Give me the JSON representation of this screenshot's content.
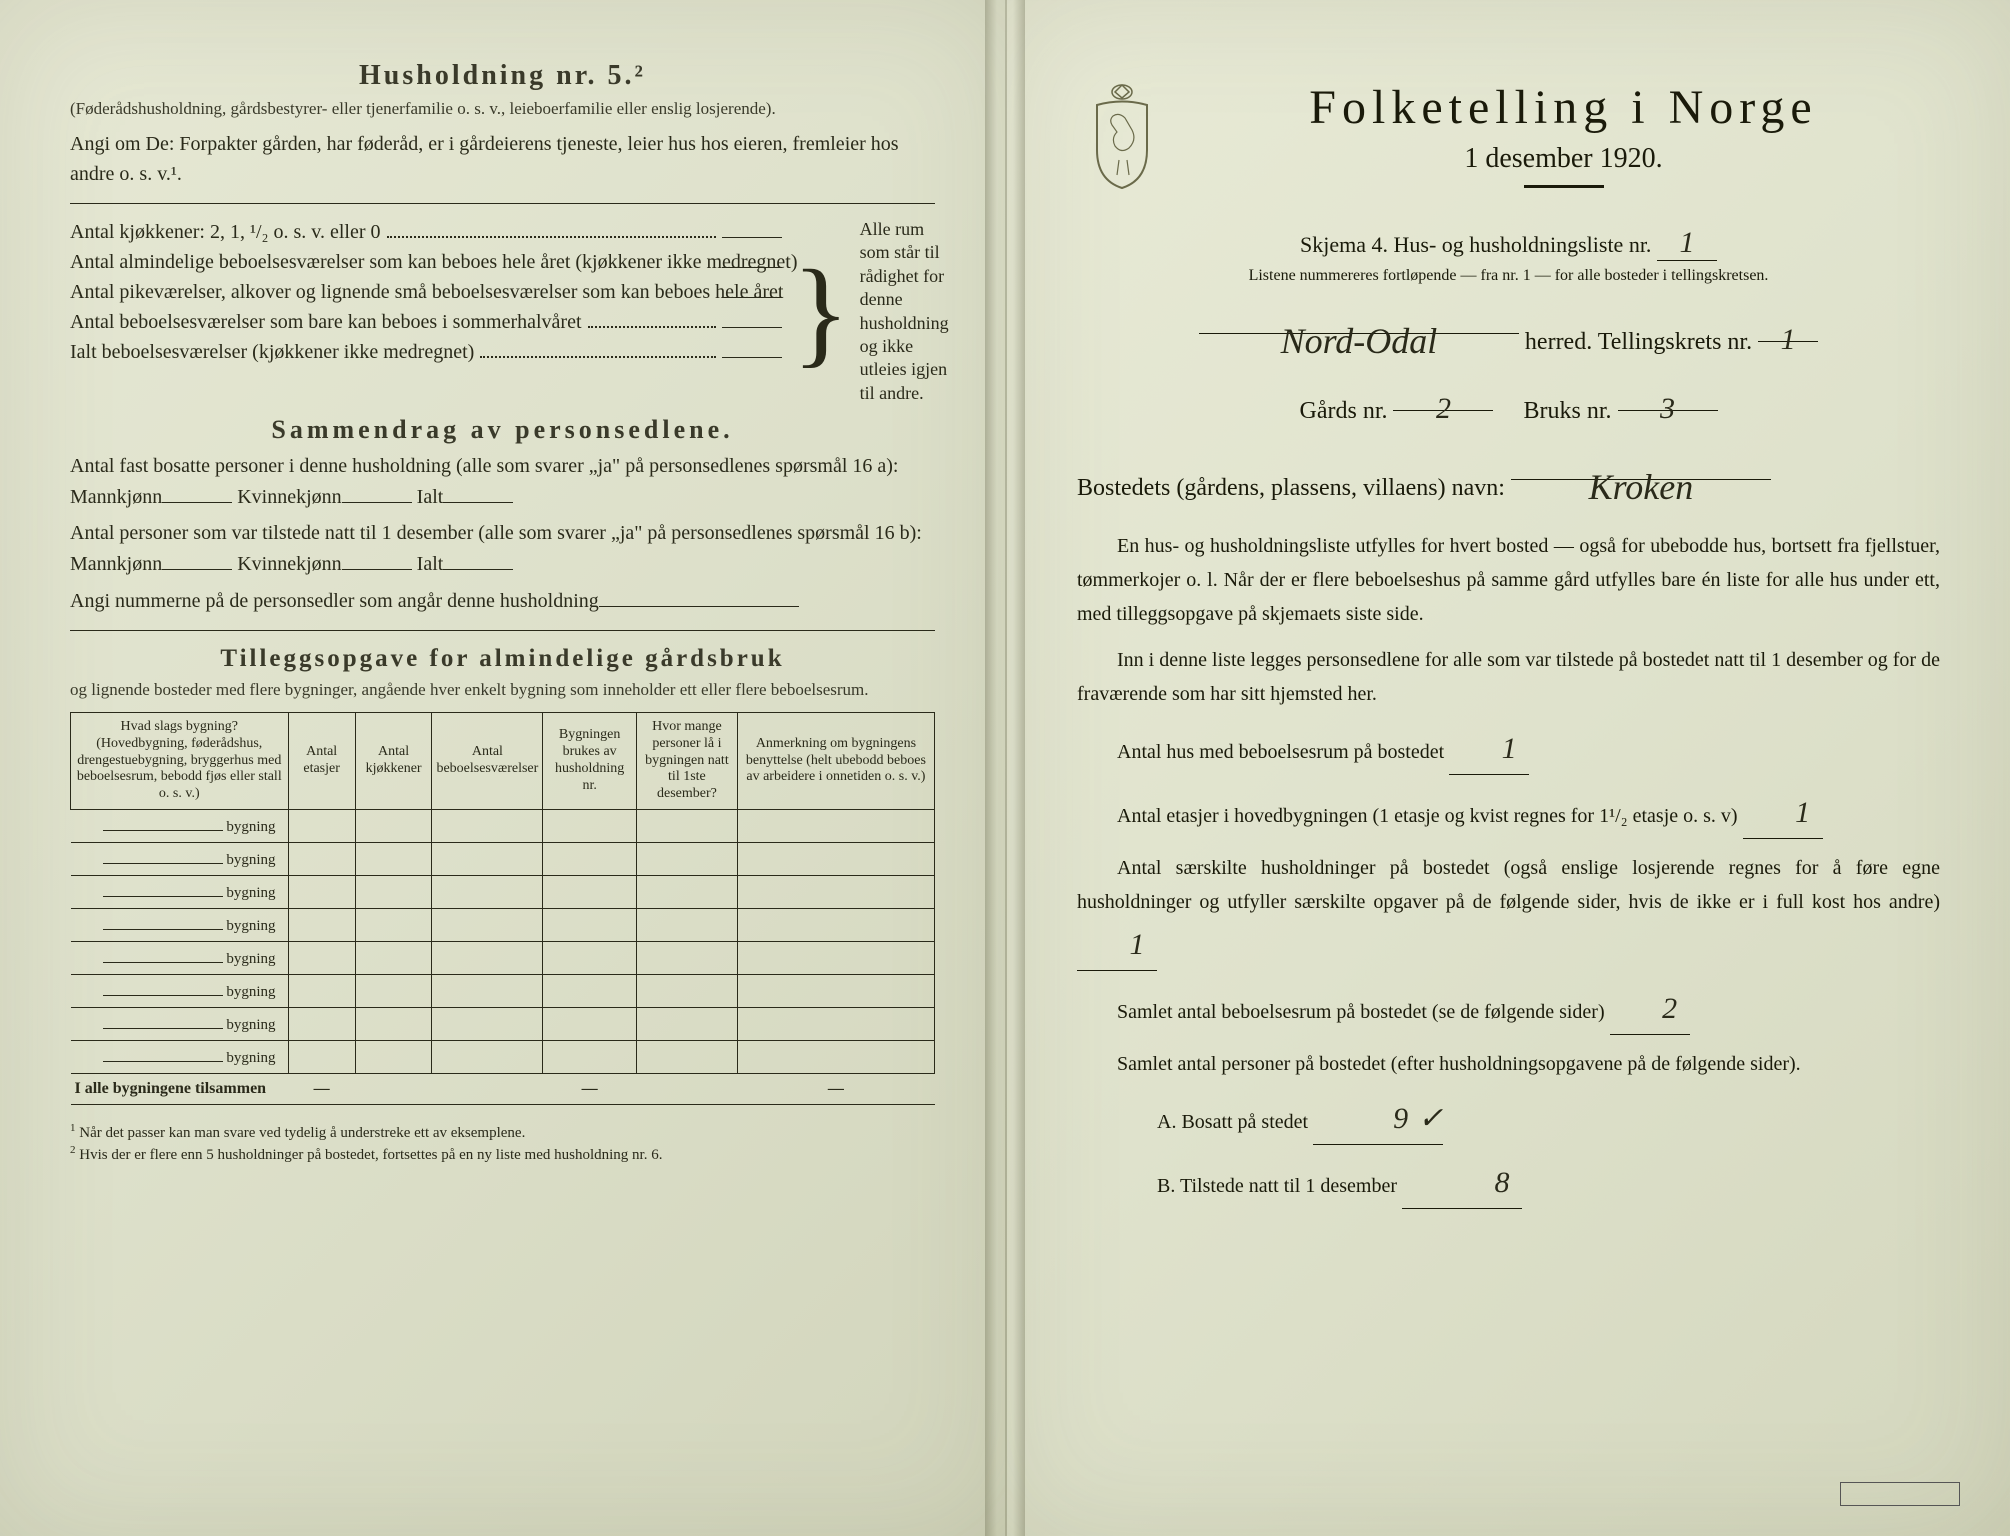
{
  "background_color": "#dde0ca",
  "text_color": "#2a2a1a",
  "accent_color": "#1a1a0a",
  "handwriting_color": "#2a2a1a",
  "font_body": "Georgia, Times New Roman, serif",
  "font_hand": "Brush Script MT, cursive",
  "left": {
    "section5_title": "Husholdning nr. 5.²",
    "section5_sub": "(Føderådshusholdning, gårdsbestyrer- eller tjenerfamilie o. s. v., leieboerfamilie eller enslig losjerende).",
    "section5_p1": "Angi om De: Forpakter gården, har føderåd, er i gårdeierens tjeneste, leier hus hos eieren, fremleier hos andre o. s. v.¹.",
    "kitchens_label": "Antal kjøkkener: 2, 1, ¹/₂ o. s. v. eller 0",
    "rooms1": "Antal almindelige beboelsesværelser som kan beboes hele året (kjøkkener ikke medregnet)",
    "rooms2": "Antal pikeværelser, alkover og lignende små beboelsesværelser som kan beboes hele året",
    "rooms3": "Antal beboelsesværelser som bare kan beboes i sommerhalvåret",
    "rooms_total": "Ialt beboelsesværelser (kjøkkener ikke medregnet)",
    "brace_text": "Alle rum som står til rådighet for denne husholdning og ikke utleies igjen til andre.",
    "summary_title": "Sammendrag av personsedlene.",
    "summary_p1a": "Antal fast bosatte personer i denne husholdning (alle som svarer „ja\" på personsedlenes spørsmål 16 a): Mannkjønn",
    "summary_kvinne": "Kvinnekjønn",
    "summary_ialt": "Ialt",
    "summary_p2a": "Antal personer som var tilstede natt til 1 desember (alle som svarer „ja\" på personsedlenes spørsmål 16 b): Mannkjønn",
    "summary_p3": "Angi nummerne på de personsedler som angår denne husholdning",
    "tillegg_title": "Tilleggsopgave for almindelige gårdsbruk",
    "tillegg_sub": "og lignende bosteder med flere bygninger, angående hver enkelt bygning som inneholder ett eller flere beboelsesrum.",
    "table": {
      "columns": [
        "Hvad slags bygning?\n(Hovedbygning, føderådshus, drengestuebygning, bryggerhus med beboelsesrum, bebodd fjøs eller stall o. s. v.)",
        "Antal etasjer",
        "Antal kjøkkener",
        "Antal beboelsesværelser",
        "Bygningen brukes av husholdning nr.",
        "Hvor mange personer lå i bygningen natt til 1ste desember?",
        "Anmerkning om bygningens benyttelse (helt ubebodd beboes av arbeidere i onnetiden o. s. v.)"
      ],
      "row_label": "bygning",
      "row_count": 8,
      "sum_label": "I alle bygningene tilsammen",
      "dash": "—"
    },
    "footnote1": "Når det passer kan man svare ved tydelig å understreke ett av eksemplene.",
    "footnote2": "Hvis der er flere enn 5 husholdninger på bostedet, fortsettes på en ny liste med husholdning nr. 6."
  },
  "right": {
    "main_title": "Folketelling i Norge",
    "sub_title": "1 desember 1920.",
    "form_label": "Skjema 4.   Hus- og husholdningsliste nr.",
    "form_nr": "1",
    "form_note": "Listene nummereres fortløpende — fra nr. 1 — for alle bosteder i tellingskretsen.",
    "herred_value": "Nord-Odal",
    "herred_label": "herred.   Tellingskrets nr.",
    "krets_nr": "1",
    "gards_label": "Gårds nr.",
    "gards_nr": "2",
    "bruks_label": "Bruks nr.",
    "bruks_nr": "3",
    "bosted_label": "Bostedets (gårdens, plassens, villaens) navn:",
    "bosted_value": "Kroken",
    "para1": "En hus- og husholdningsliste utfylles for hvert bosted — også for ubebodde hus, bortsett fra fjellstuer, tømmerkojer o. l. Når der er flere beboelseshus på samme gård utfylles bare én liste for alle hus under ett, med tilleggsopgave på skjemaets siste side.",
    "para2": "Inn i denne liste legges personsedlene for alle som var tilstede på bostedet natt til 1 desember og for de fraværende som har sitt hjemsted her.",
    "q1_label": "Antal hus med beboelsesrum på bostedet",
    "q1_value": "1",
    "q2_label_a": "Antal etasjer i hovedbygningen (1 etasje og kvist regnes for 1¹/₂ etasje o. s. v)",
    "q2_value": "1",
    "q3_label": "Antal særskilte husholdninger på bostedet (også enslige losjerende regnes for å føre egne husholdninger og utfyller særskilte opgaver på de følgende sider, hvis de ikke er i full kost hos andre)",
    "q3_value": "1",
    "q4_label": "Samlet antal beboelsesrum på bostedet (se de følgende sider)",
    "q4_value": "2",
    "q5_label": "Samlet antal personer på bostedet (efter husholdningsopgavene på de følgende sider).",
    "q5a_label": "A.  Bosatt på stedet",
    "q5a_value": "9",
    "q5a_check": "✓",
    "q5b_label": "B.  Tilstede natt til 1 desember",
    "q5b_value": "8",
    "stamp_text": ""
  }
}
